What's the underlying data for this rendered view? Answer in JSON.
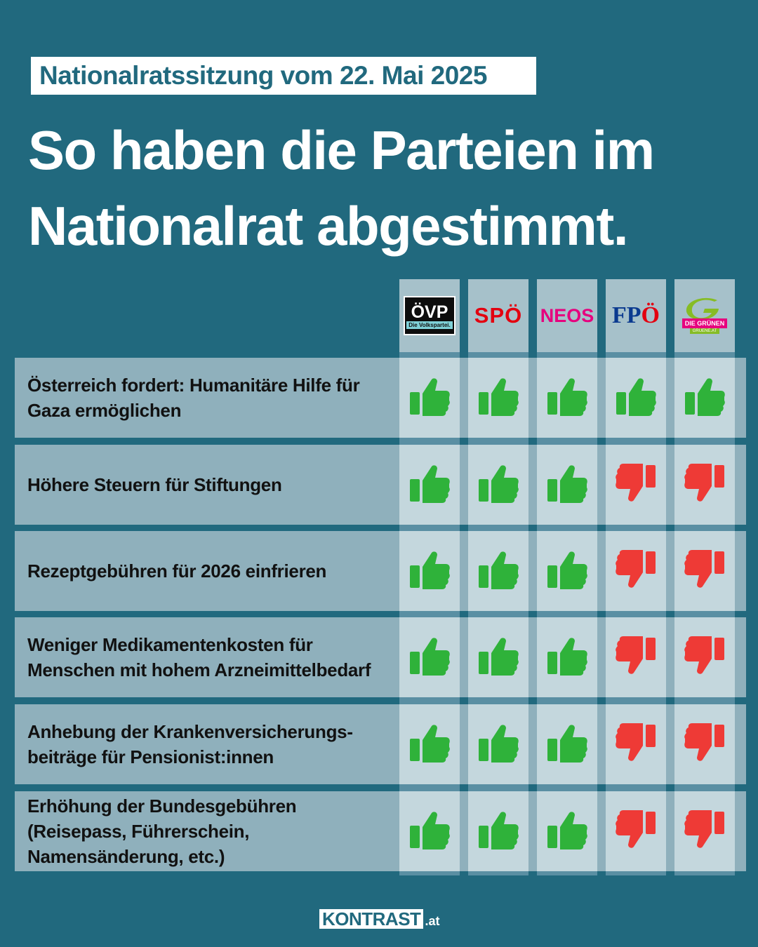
{
  "date_badge": "Nationalratssitzung vom 22. Mai 2025",
  "headline": {
    "line1": "So haben die Parteien im",
    "line2": "Nationalrat abgestimmt."
  },
  "parties": [
    {
      "main": "ÖVP",
      "sub": "Die Volkspartei.",
      "color": "#0d0d0d"
    },
    {
      "main": "SPÖ",
      "color": "#e3000f"
    },
    {
      "main": "NEOS",
      "color": "#e6007e"
    },
    {
      "main": "FP",
      "accent": "Ö",
      "color": "#0a3a8f"
    },
    {
      "main": "G",
      "sub": "DIE GRÜNEN",
      "sub2": "GRUENE.AT",
      "color": "#86bc25"
    }
  ],
  "rows": [
    {
      "label": "Österreich fordert: Humanitäre Hilfe für Gaza ermöglichen",
      "votes": [
        "yes",
        "yes",
        "yes",
        "yes",
        "yes"
      ]
    },
    {
      "label": "Höhere Steuern für Stiftungen",
      "votes": [
        "yes",
        "yes",
        "yes",
        "no",
        "no"
      ]
    },
    {
      "label": "Rezeptgebühren für 2026 einfrieren",
      "votes": [
        "yes",
        "yes",
        "yes",
        "no",
        "no"
      ]
    },
    {
      "label": "Weniger Medikamentenkosten für Menschen mit hohem Arzneimittelbedarf",
      "votes": [
        "yes",
        "yes",
        "yes",
        "no",
        "no"
      ]
    },
    {
      "label": "Anhebung der Krankenversicherungs-beiträge für Pensionist:innen",
      "votes": [
        "yes",
        "yes",
        "yes",
        "no",
        "no"
      ]
    },
    {
      "label": "Erhöhung der Bundesgebühren (Reisepass, Führerschein, Namensänderung, etc.)",
      "votes": [
        "yes",
        "yes",
        "yes",
        "no",
        "no"
      ]
    }
  ],
  "colors": {
    "yes": "#2fb23a",
    "no": "#ee3a36"
  },
  "footer": {
    "brand": "KONTRAST",
    "tld": ".at"
  }
}
